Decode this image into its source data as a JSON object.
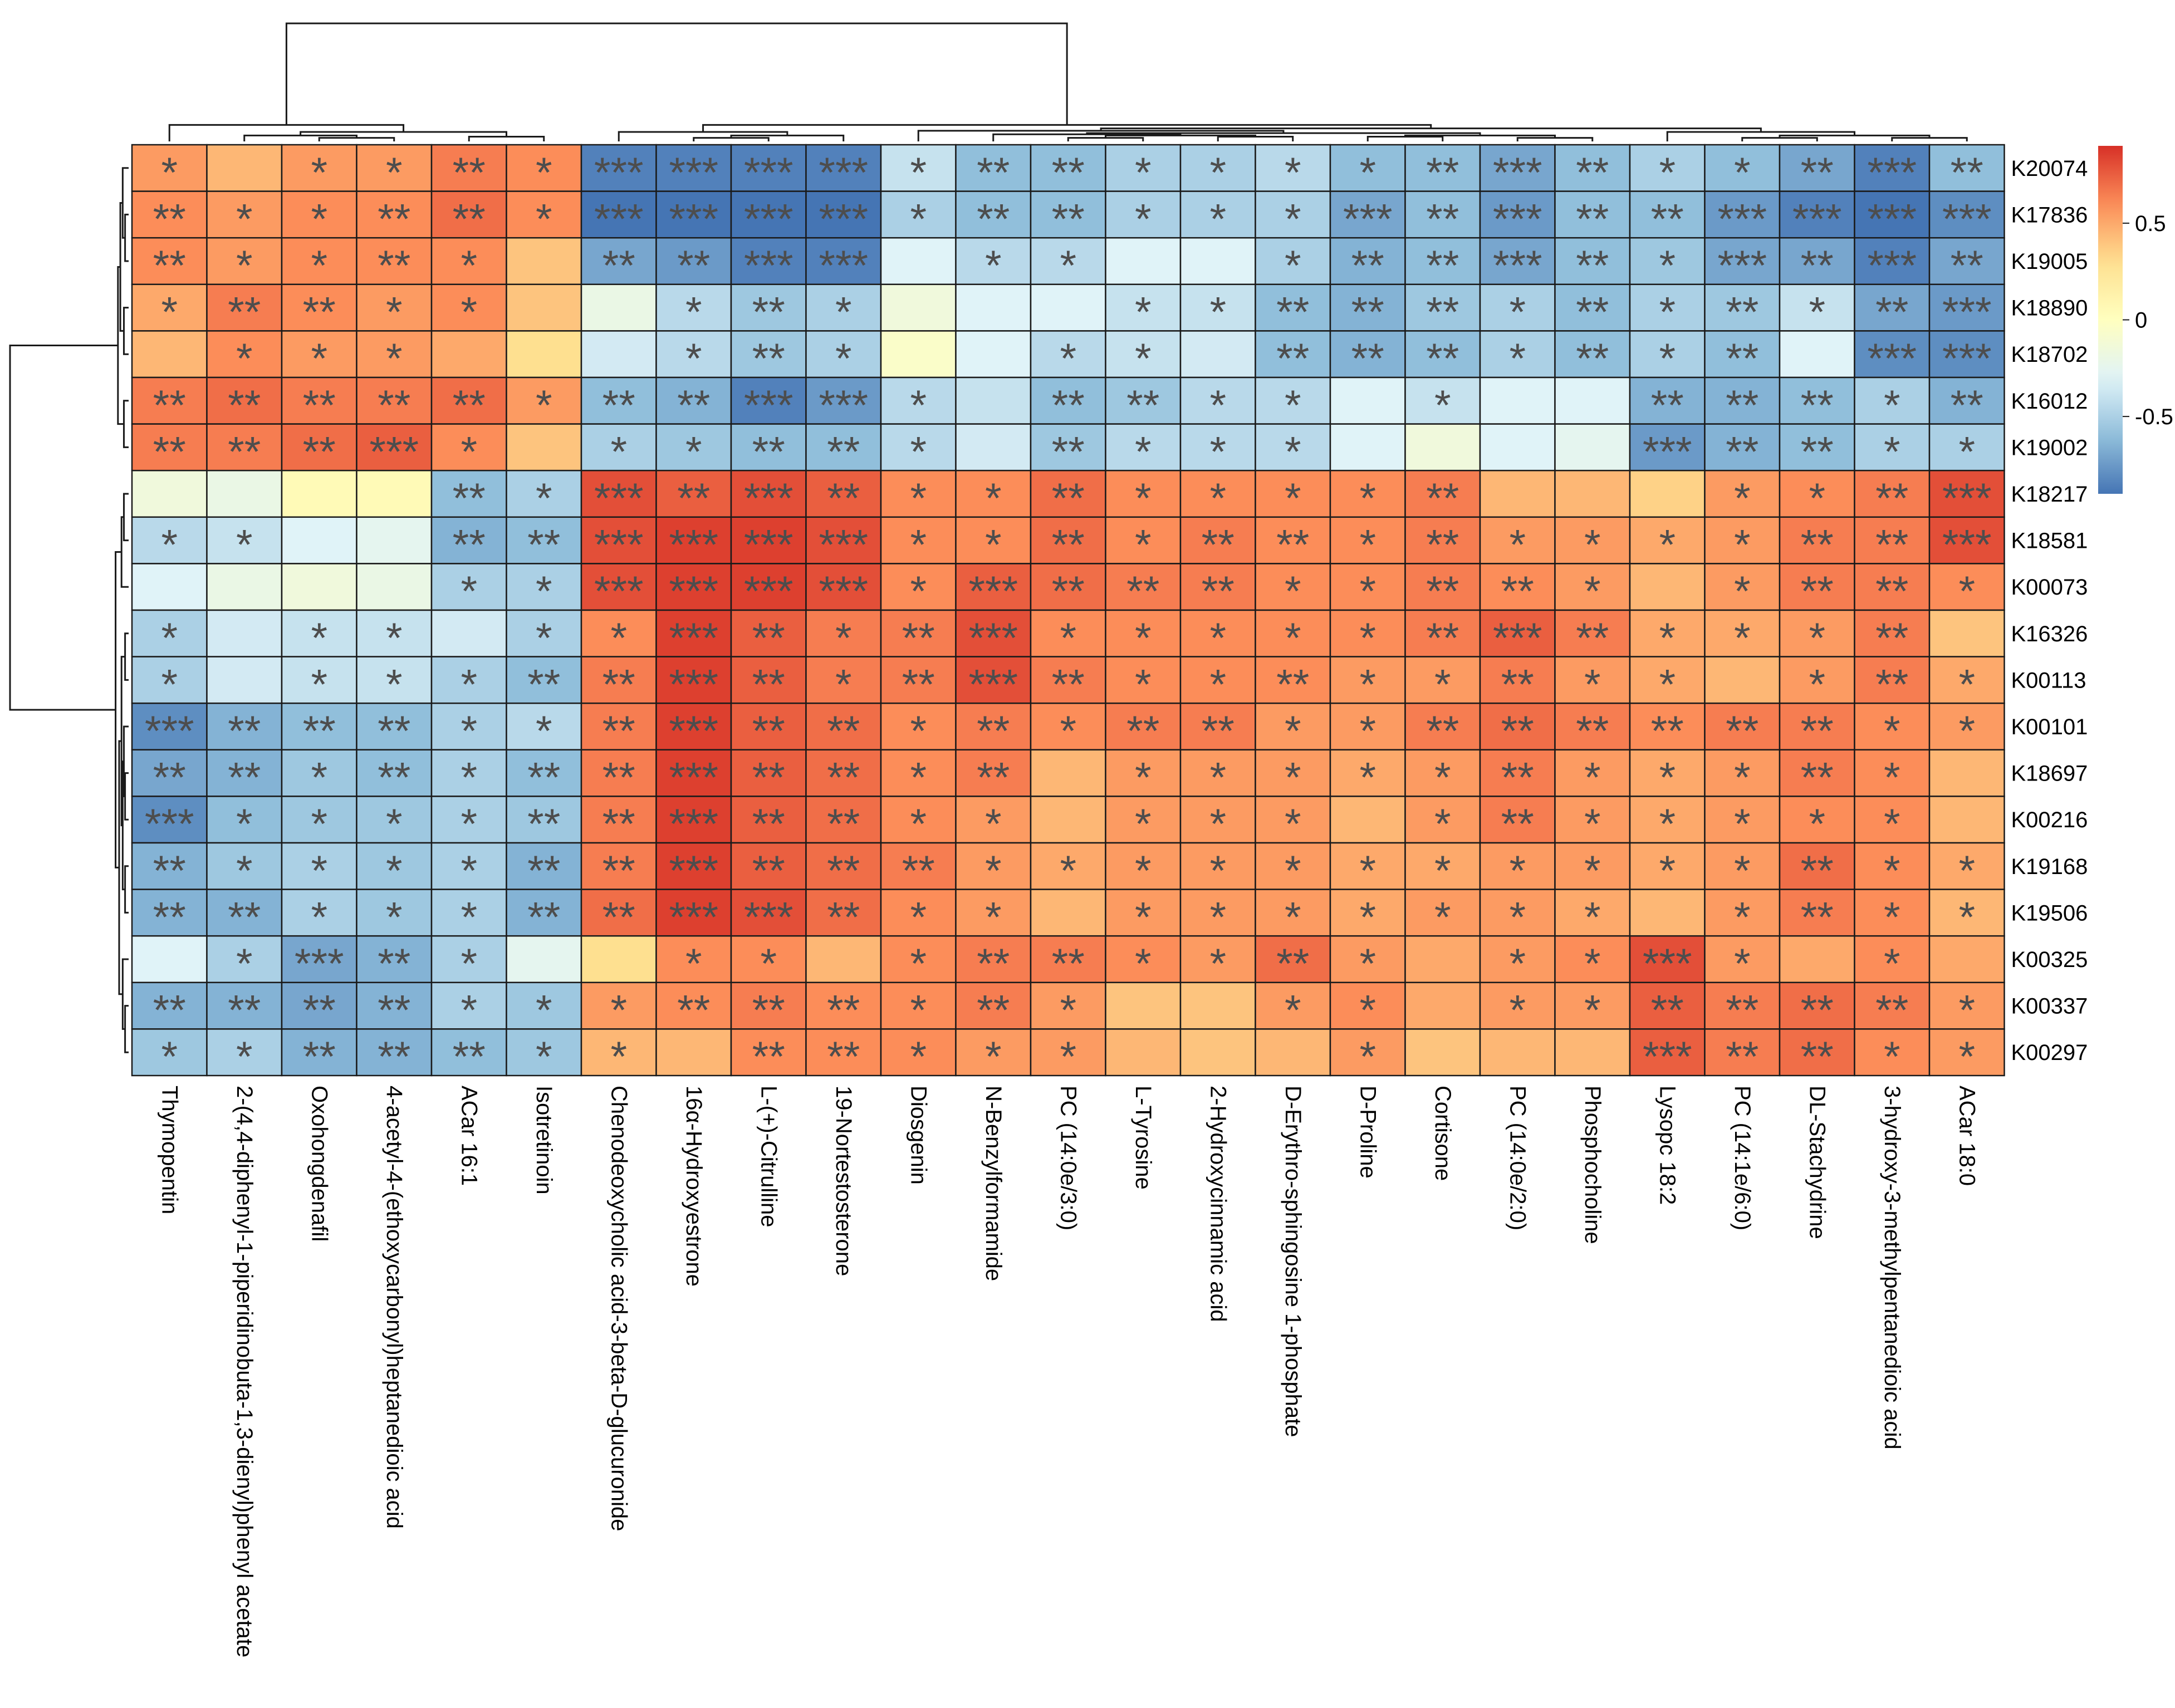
{
  "chart_data": {
    "type": "heatmap",
    "title": "",
    "rows": [
      "K20074",
      "K17836",
      "K19005",
      "K18890",
      "K18702",
      "K16012",
      "K19002",
      "K18217",
      "K18581",
      "K00073",
      "K16326",
      "K00113",
      "K00101",
      "K18697",
      "K00216",
      "K19168",
      "K19506",
      "K00325",
      "K00337",
      "K00297"
    ],
    "columns": [
      "Thymopentin",
      "2-(4,4-diphenyl-1-piperidinobuta-1,3-dienyl)phenyl acetate",
      "Oxohongdenafil",
      "4-acetyl-4-(ethoxycarbonyl)heptanedioic acid",
      "ACar 16:1",
      "Isotretinoin",
      "Chenodeoxycholic acid-3-beta-D-glucuronide",
      "16α-Hydroxyestrone",
      "L-(+)-Citrulline",
      "19-Nortestosterone",
      "Diosgenin",
      "N-Benzylformamide",
      "PC (14:0e/3:0)",
      "L-Tyrosine",
      "2-Hydroxycinnamic acid",
      "D-Erythro-sphingosine 1-phosphate",
      "D-Proline",
      "Cortisone",
      "PC (14:0e/2:0)",
      "Phosphocholine",
      "Lysopc 18:2",
      "PC (14:1e/6:0)",
      "DL-Stachydrine",
      "3-hydroxy-3-methylpentanedioic acid",
      "ACar 18:0"
    ],
    "values": [
      [
        0.55,
        0.45,
        0.55,
        0.55,
        0.65,
        0.6,
        -0.85,
        -0.85,
        -0.85,
        -0.85,
        -0.4,
        -0.6,
        -0.6,
        -0.5,
        -0.5,
        -0.45,
        -0.6,
        -0.6,
        -0.7,
        -0.6,
        -0.5,
        -0.6,
        -0.7,
        -0.85,
        -0.6
      ],
      [
        0.6,
        0.55,
        0.6,
        0.6,
        0.7,
        0.6,
        -0.9,
        -0.9,
        -0.95,
        -0.9,
        -0.5,
        -0.6,
        -0.6,
        -0.5,
        -0.5,
        -0.5,
        -0.7,
        -0.6,
        -0.75,
        -0.6,
        -0.6,
        -0.75,
        -0.85,
        -0.9,
        -0.8
      ],
      [
        0.6,
        0.55,
        0.6,
        0.6,
        0.6,
        0.4,
        -0.7,
        -0.75,
        -0.85,
        -0.85,
        -0.3,
        -0.45,
        -0.45,
        -0.3,
        -0.3,
        -0.5,
        -0.65,
        -0.6,
        -0.7,
        -0.6,
        -0.55,
        -0.7,
        -0.7,
        -0.85,
        -0.7
      ],
      [
        0.5,
        0.65,
        0.6,
        0.55,
        0.6,
        0.4,
        -0.2,
        -0.45,
        -0.55,
        -0.5,
        -0.15,
        -0.3,
        -0.3,
        -0.4,
        -0.4,
        -0.6,
        -0.65,
        -0.55,
        -0.5,
        -0.6,
        -0.5,
        -0.55,
        -0.4,
        -0.7,
        -0.75
      ],
      [
        0.45,
        0.6,
        0.55,
        0.55,
        0.5,
        0.3,
        -0.35,
        -0.45,
        -0.55,
        -0.5,
        -0.05,
        -0.3,
        -0.45,
        -0.4,
        -0.35,
        -0.6,
        -0.65,
        -0.6,
        -0.5,
        -0.6,
        -0.5,
        -0.6,
        -0.3,
        -0.8,
        -0.8
      ],
      [
        0.65,
        0.7,
        0.65,
        0.65,
        0.7,
        0.55,
        -0.6,
        -0.65,
        -0.85,
        -0.75,
        -0.45,
        -0.4,
        -0.6,
        -0.55,
        -0.45,
        -0.45,
        -0.3,
        -0.4,
        -0.3,
        -0.3,
        -0.65,
        -0.65,
        -0.6,
        -0.5,
        -0.65
      ],
      [
        0.65,
        0.65,
        0.7,
        0.75,
        0.6,
        0.4,
        -0.5,
        -0.55,
        -0.6,
        -0.6,
        -0.45,
        -0.35,
        -0.55,
        -0.45,
        -0.45,
        -0.45,
        -0.3,
        -0.15,
        -0.3,
        -0.25,
        -0.75,
        -0.65,
        -0.6,
        -0.5,
        -0.5
      ],
      [
        -0.15,
        -0.2,
        0.05,
        0.05,
        -0.6,
        -0.5,
        0.8,
        0.75,
        0.8,
        0.75,
        0.6,
        0.6,
        0.7,
        0.6,
        0.6,
        0.6,
        0.6,
        0.65,
        0.45,
        0.45,
        0.35,
        0.55,
        0.6,
        0.65,
        0.8
      ],
      [
        -0.45,
        -0.4,
        -0.3,
        -0.25,
        -0.65,
        -0.6,
        0.8,
        0.85,
        0.85,
        0.8,
        0.6,
        0.6,
        0.7,
        0.6,
        0.65,
        0.6,
        0.6,
        0.65,
        0.55,
        0.55,
        0.5,
        0.55,
        0.65,
        0.65,
        0.8
      ],
      [
        -0.3,
        -0.2,
        -0.15,
        -0.2,
        -0.5,
        -0.5,
        0.8,
        0.85,
        0.85,
        0.8,
        0.6,
        0.75,
        0.7,
        0.65,
        0.65,
        0.6,
        0.6,
        0.65,
        0.6,
        0.55,
        0.45,
        0.55,
        0.65,
        0.65,
        0.6
      ],
      [
        -0.5,
        -0.35,
        -0.4,
        -0.4,
        -0.35,
        -0.5,
        0.6,
        0.85,
        0.75,
        0.65,
        0.65,
        0.8,
        0.6,
        0.6,
        0.6,
        0.6,
        0.6,
        0.65,
        0.75,
        0.65,
        0.5,
        0.5,
        0.55,
        0.65,
        0.4
      ],
      [
        -0.5,
        -0.35,
        -0.4,
        -0.4,
        -0.5,
        -0.6,
        0.65,
        0.85,
        0.75,
        0.65,
        0.65,
        0.8,
        0.65,
        0.6,
        0.6,
        0.6,
        0.55,
        0.55,
        0.65,
        0.55,
        0.5,
        0.45,
        0.55,
        0.65,
        0.5
      ],
      [
        -0.8,
        -0.65,
        -0.6,
        -0.6,
        -0.5,
        -0.45,
        0.65,
        0.85,
        0.75,
        0.7,
        0.6,
        0.65,
        0.6,
        0.65,
        0.65,
        0.55,
        0.55,
        0.65,
        0.7,
        0.65,
        0.6,
        0.65,
        0.65,
        0.6,
        0.55
      ],
      [
        -0.7,
        -0.65,
        -0.55,
        -0.6,
        -0.5,
        -0.6,
        0.65,
        0.85,
        0.75,
        0.7,
        0.6,
        0.65,
        0.45,
        0.55,
        0.55,
        0.55,
        0.5,
        0.55,
        0.65,
        0.55,
        0.5,
        0.55,
        0.65,
        0.6,
        0.45
      ],
      [
        -0.8,
        -0.6,
        -0.55,
        -0.55,
        -0.5,
        -0.55,
        0.65,
        0.85,
        0.75,
        0.7,
        0.6,
        0.55,
        0.45,
        0.55,
        0.55,
        0.55,
        0.45,
        0.55,
        0.65,
        0.55,
        0.5,
        0.55,
        0.6,
        0.6,
        0.45
      ],
      [
        -0.65,
        -0.55,
        -0.5,
        -0.55,
        -0.5,
        -0.65,
        0.65,
        0.85,
        0.75,
        0.7,
        0.65,
        0.55,
        0.5,
        0.55,
        0.55,
        0.55,
        0.5,
        0.5,
        0.55,
        0.55,
        0.5,
        0.55,
        0.7,
        0.6,
        0.5
      ],
      [
        -0.65,
        -0.65,
        -0.5,
        -0.55,
        -0.5,
        -0.65,
        0.7,
        0.85,
        0.8,
        0.7,
        0.6,
        0.55,
        0.45,
        0.55,
        0.55,
        0.55,
        0.5,
        0.55,
        0.55,
        0.5,
        0.45,
        0.55,
        0.65,
        0.6,
        0.45
      ],
      [
        -0.3,
        -0.5,
        -0.7,
        -0.65,
        -0.5,
        -0.25,
        0.3,
        0.6,
        0.6,
        0.45,
        0.6,
        0.65,
        0.65,
        0.6,
        0.55,
        0.7,
        0.55,
        0.5,
        0.55,
        0.6,
        0.8,
        0.55,
        0.5,
        0.6,
        0.5
      ],
      [
        -0.65,
        -0.65,
        -0.7,
        -0.65,
        -0.5,
        -0.55,
        0.55,
        0.6,
        0.65,
        0.6,
        0.6,
        0.65,
        0.55,
        0.4,
        0.4,
        0.55,
        0.6,
        0.5,
        0.55,
        0.55,
        0.75,
        0.65,
        0.7,
        0.65,
        0.55
      ],
      [
        -0.55,
        -0.5,
        -0.65,
        -0.65,
        -0.6,
        -0.55,
        0.45,
        0.45,
        0.6,
        0.6,
        0.6,
        0.55,
        0.55,
        0.45,
        0.4,
        0.45,
        0.55,
        0.4,
        0.45,
        0.45,
        0.75,
        0.65,
        0.7,
        0.6,
        0.55
      ]
    ],
    "significance": [
      [
        "*",
        "",
        "*",
        "*",
        "**",
        "*",
        "***",
        "***",
        "***",
        "***",
        "*",
        "**",
        "**",
        "*",
        "*",
        "*",
        "*",
        "**",
        "***",
        "**",
        "*",
        "*",
        "**",
        "***",
        "**"
      ],
      [
        "**",
        "*",
        "*",
        "**",
        "**",
        "*",
        "***",
        "***",
        "***",
        "***",
        "*",
        "**",
        "**",
        "*",
        "*",
        "*",
        "***",
        "**",
        "***",
        "**",
        "**",
        "***",
        "***",
        "***",
        "***"
      ],
      [
        "**",
        "*",
        "*",
        "**",
        "*",
        "",
        "**",
        "**",
        "***",
        "***",
        "",
        "*",
        "*",
        "",
        "",
        "*",
        "**",
        "**",
        "***",
        "**",
        "*",
        "***",
        "**",
        "***",
        "**"
      ],
      [
        "*",
        "**",
        "**",
        "*",
        "*",
        "",
        "",
        "*",
        "**",
        "*",
        "",
        "",
        "",
        "*",
        "*",
        "**",
        "**",
        "**",
        "*",
        "**",
        "*",
        "**",
        "*",
        "**",
        "***"
      ],
      [
        "",
        "*",
        "*",
        "*",
        "",
        "",
        "",
        "*",
        "**",
        "*",
        "",
        "",
        "*",
        "*",
        "",
        "**",
        "**",
        "**",
        "*",
        "**",
        "*",
        "**",
        "",
        "***",
        "***"
      ],
      [
        "**",
        "**",
        "**",
        "**",
        "**",
        "*",
        "**",
        "**",
        "***",
        "***",
        "*",
        "",
        "**",
        "**",
        "*",
        "*",
        "",
        "*",
        "",
        "",
        "**",
        "**",
        "**",
        "*",
        "**"
      ],
      [
        "**",
        "**",
        "**",
        "***",
        "*",
        "",
        "*",
        "*",
        "**",
        "**",
        "*",
        "",
        "**",
        "*",
        "*",
        "*",
        "",
        "",
        "",
        "",
        "***",
        "**",
        "**",
        "*",
        "*"
      ],
      [
        "",
        "",
        "",
        "",
        "**",
        "*",
        "***",
        "**",
        "***",
        "**",
        "*",
        "*",
        "**",
        "*",
        "*",
        "*",
        "*",
        "**",
        "",
        "",
        "",
        "*",
        "*",
        "**",
        "***"
      ],
      [
        "*",
        "*",
        "",
        "",
        "**",
        "**",
        "***",
        "***",
        "***",
        "***",
        "*",
        "*",
        "**",
        "*",
        "**",
        "**",
        "*",
        "**",
        "*",
        "*",
        "*",
        "*",
        "**",
        "**",
        "***"
      ],
      [
        "",
        "",
        "",
        "",
        "*",
        "*",
        "***",
        "***",
        "***",
        "***",
        "*",
        "***",
        "**",
        "**",
        "**",
        "*",
        "*",
        "**",
        "**",
        "*",
        "",
        "*",
        "**",
        "**",
        "*"
      ],
      [
        "*",
        "",
        "*",
        "*",
        "",
        "*",
        "*",
        "***",
        "**",
        "*",
        "**",
        "***",
        "*",
        "*",
        "*",
        "*",
        "*",
        "**",
        "***",
        "**",
        "*",
        "*",
        "*",
        "**",
        ""
      ],
      [
        "*",
        "",
        "*",
        "*",
        "*",
        "**",
        "**",
        "***",
        "**",
        "*",
        "**",
        "***",
        "**",
        "*",
        "*",
        "**",
        "*",
        "*",
        "**",
        "*",
        "*",
        "",
        "*",
        "**",
        "*"
      ],
      [
        "***",
        "**",
        "**",
        "**",
        "*",
        "*",
        "**",
        "***",
        "**",
        "**",
        "*",
        "**",
        "*",
        "**",
        "**",
        "*",
        "*",
        "**",
        "**",
        "**",
        "**",
        "**",
        "**",
        "*",
        "*"
      ],
      [
        "**",
        "**",
        "*",
        "**",
        "*",
        "**",
        "**",
        "***",
        "**",
        "**",
        "*",
        "**",
        "",
        "*",
        "*",
        "*",
        "*",
        "*",
        "**",
        "*",
        "*",
        "*",
        "**",
        "*",
        ""
      ],
      [
        "***",
        "*",
        "*",
        "*",
        "*",
        "**",
        "**",
        "***",
        "**",
        "**",
        "*",
        "*",
        "",
        "*",
        "*",
        "*",
        "",
        "*",
        "**",
        "*",
        "*",
        "*",
        "*",
        "*",
        ""
      ],
      [
        "**",
        "*",
        "*",
        "*",
        "*",
        "**",
        "**",
        "***",
        "**",
        "**",
        "**",
        "*",
        "*",
        "*",
        "*",
        "*",
        "*",
        "*",
        "*",
        "*",
        "*",
        "*",
        "**",
        "*",
        "*"
      ],
      [
        "**",
        "**",
        "*",
        "*",
        "*",
        "**",
        "**",
        "***",
        "***",
        "**",
        "*",
        "*",
        "",
        "*",
        "*",
        "*",
        "*",
        "*",
        "*",
        "*",
        "",
        "*",
        "**",
        "*",
        "*"
      ],
      [
        "",
        "*",
        "***",
        "**",
        "*",
        "",
        "",
        "*",
        "*",
        "",
        "*",
        "**",
        "**",
        "*",
        "*",
        "**",
        "*",
        "",
        "*",
        "*",
        "***",
        "*",
        "",
        "*",
        ""
      ],
      [
        "**",
        "**",
        "**",
        "**",
        "*",
        "*",
        "*",
        "**",
        "**",
        "**",
        "*",
        "**",
        "*",
        "",
        "",
        "*",
        "*",
        "",
        "*",
        "*",
        "**",
        "**",
        "**",
        "**",
        "*"
      ],
      [
        "*",
        "*",
        "**",
        "**",
        "**",
        "*",
        "*",
        "",
        "**",
        "**",
        "*",
        "*",
        "*",
        "",
        "",
        "",
        "*",
        "",
        "",
        "",
        "***",
        "**",
        "**",
        "*",
        "*"
      ]
    ],
    "colorbar": {
      "min": -0.9,
      "max": 0.9,
      "ticks": [
        0.5,
        0,
        -0.5
      ],
      "tick_labels": [
        "0.5",
        "0",
        "-0.5"
      ],
      "colors": [
        "#4575b4",
        "#91bfdb",
        "#e0f3f8",
        "#ffffbf",
        "#fee090",
        "#fc8d59",
        "#d73027"
      ]
    }
  }
}
